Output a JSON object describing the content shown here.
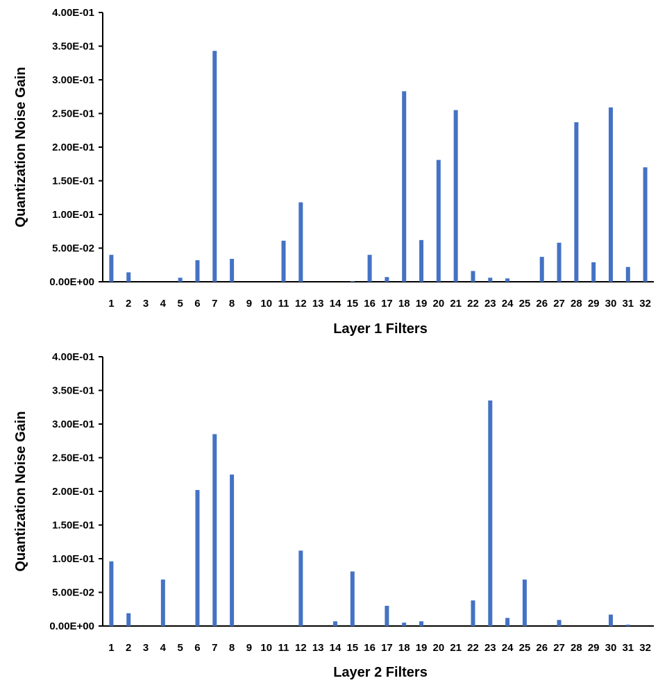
{
  "colors": {
    "bar": "#4472C4",
    "axis": "#000000"
  },
  "chart_data": [
    {
      "type": "bar",
      "title": "",
      "xlabel": "Layer 1 Filters",
      "ylabel": "Quantization Noise Gain",
      "ylim": [
        0,
        0.4
      ],
      "yticks": [
        0,
        0.05,
        0.1,
        0.15,
        0.2,
        0.25,
        0.3,
        0.35,
        0.4
      ],
      "ytick_labels": [
        "0.00E+00",
        "5.00E-02",
        "1.00E-01",
        "1.50E-01",
        "2.00E-01",
        "2.50E-01",
        "3.00E-01",
        "3.50E-01",
        "4.00E-01"
      ],
      "grid": false,
      "categories": [
        "1",
        "2",
        "3",
        "4",
        "5",
        "6",
        "7",
        "8",
        "9",
        "10",
        "11",
        "12",
        "13",
        "14",
        "15",
        "16",
        "17",
        "18",
        "19",
        "20",
        "21",
        "22",
        "23",
        "24",
        "25",
        "26",
        "27",
        "28",
        "29",
        "30",
        "31",
        "32"
      ],
      "values": [
        0.04,
        0.014,
        0.0,
        0.0,
        0.006,
        0.032,
        0.343,
        0.034,
        0.0,
        0.0,
        0.061,
        0.118,
        0.0,
        0.0,
        0.001,
        0.04,
        0.007,
        0.283,
        0.062,
        0.181,
        0.255,
        0.016,
        0.006,
        0.005,
        0.0,
        0.037,
        0.058,
        0.237,
        0.029,
        0.259,
        0.022,
        0.17
      ]
    },
    {
      "type": "bar",
      "title": "",
      "xlabel": "Layer 2 Filters",
      "ylabel": "Quantization Noise Gain",
      "ylim": [
        0,
        0.4
      ],
      "yticks": [
        0,
        0.05,
        0.1,
        0.15,
        0.2,
        0.25,
        0.3,
        0.35,
        0.4
      ],
      "ytick_labels": [
        "0.00E+00",
        "5.00E-02",
        "1.00E-01",
        "1.50E-01",
        "2.00E-01",
        "2.50E-01",
        "3.00E-01",
        "3.50E-01",
        "4.00E-01"
      ],
      "grid": false,
      "categories": [
        "1",
        "2",
        "3",
        "4",
        "5",
        "6",
        "7",
        "8",
        "9",
        "10",
        "11",
        "12",
        "13",
        "14",
        "15",
        "16",
        "17",
        "18",
        "19",
        "20",
        "21",
        "22",
        "23",
        "24",
        "25",
        "26",
        "27",
        "28",
        "29",
        "30",
        "31",
        "32"
      ],
      "values": [
        0.096,
        0.019,
        0.0,
        0.069,
        0.0,
        0.202,
        0.285,
        0.225,
        0.0,
        0.0,
        0.0,
        0.112,
        0.0,
        0.007,
        0.081,
        0.0,
        0.03,
        0.005,
        0.007,
        0.0,
        0.0,
        0.038,
        0.335,
        0.012,
        0.069,
        0.0,
        0.009,
        0.0,
        0.0,
        0.017,
        0.002,
        0.0
      ]
    }
  ]
}
